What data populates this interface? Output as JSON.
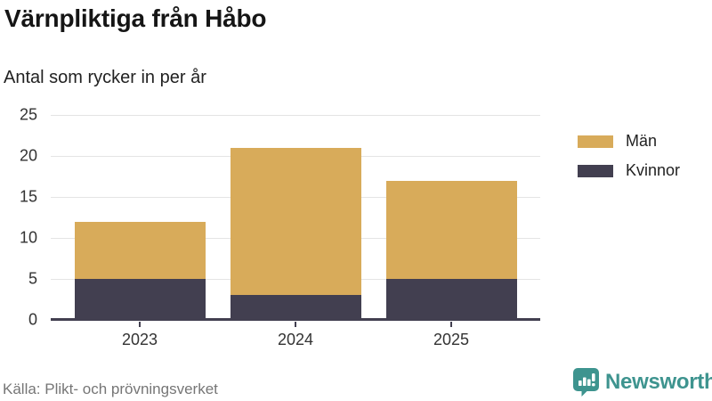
{
  "title": "Värnpliktiga från Håbo",
  "subtitle": "Antal som rycker in per år",
  "source": "Källa: Plikt- och prövningsverket",
  "branding": {
    "name": "Newsworthy",
    "logo_icon": "bar-chart-speech-bubble",
    "color": "#3e948f"
  },
  "colors": {
    "men": "#d8ab5a",
    "women": "#423f50",
    "grid": "#e4e4e4",
    "axis": "#423f50",
    "text": "#333333"
  },
  "legend": [
    {
      "label": "Män",
      "color": "#d8ab5a"
    },
    {
      "label": "Kvinnor",
      "color": "#423f50"
    }
  ],
  "chart_data": {
    "type": "bar",
    "stacked": true,
    "title": "Värnpliktiga från Håbo",
    "subtitle": "Antal som rycker in per år",
    "categories": [
      "2023",
      "2024",
      "2025"
    ],
    "series": [
      {
        "name": "Kvinnor",
        "values": [
          5,
          3,
          5
        ],
        "color": "#423f50"
      },
      {
        "name": "Män",
        "values": [
          7,
          18,
          12
        ],
        "color": "#d8ab5a"
      }
    ],
    "totals": [
      12,
      21,
      17
    ],
    "xlabel": "",
    "ylabel": "",
    "ylim": [
      0,
      25
    ],
    "yticks": [
      0,
      5,
      10,
      15,
      20,
      25
    ],
    "grid": true,
    "legend_position": "right"
  }
}
